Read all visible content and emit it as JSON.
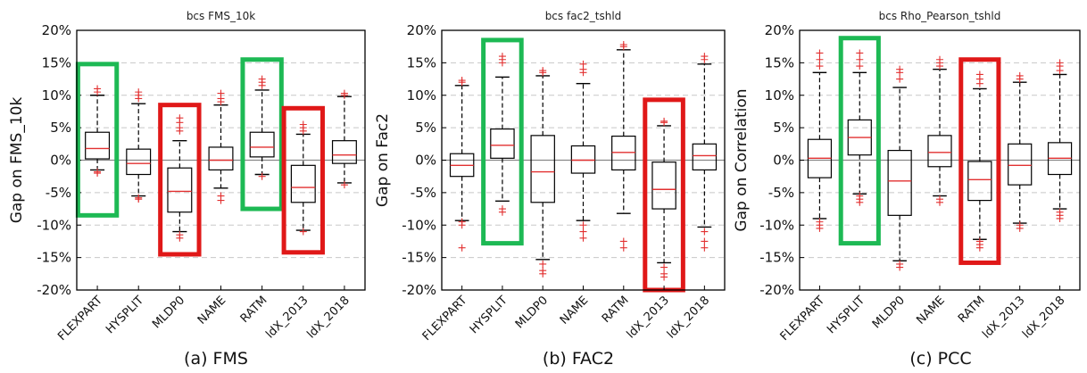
{
  "chart_data": [
    {
      "type": "box",
      "caption": "(a) FMS",
      "title": "bcs FMS_10k",
      "ylabel": "Gap on FMS_10k",
      "ylim": [
        -20,
        20
      ],
      "yticks": [
        "-20%",
        "-15%",
        "-10%",
        "-5%",
        "0%",
        "5%",
        "10%",
        "15%",
        "20%"
      ],
      "categories": [
        "FLEXPART",
        "HYSPLIT",
        "MLDP0",
        "NAME",
        "RATM",
        "ldX_2013",
        "ldX_2018"
      ],
      "boxes": [
        {
          "whislo": -1.5,
          "q1": 0.2,
          "med": 1.8,
          "q3": 4.3,
          "whishi": 10,
          "fliers": [
            -2,
            -1.8,
            10.5,
            11
          ]
        },
        {
          "whislo": -5.5,
          "q1": -2.2,
          "med": -0.5,
          "q3": 1.7,
          "whishi": 8.7,
          "fliers": [
            -6,
            -5.8,
            9.5,
            10,
            10.5
          ]
        },
        {
          "whislo": -11,
          "q1": -8,
          "med": -4.8,
          "q3": -1.2,
          "whishi": 3,
          "fliers": [
            -12,
            -11.5,
            4.5,
            5,
            5.8,
            6.5
          ]
        },
        {
          "whislo": -4.3,
          "q1": -1.5,
          "med": 0,
          "q3": 2,
          "whishi": 8.5,
          "fliers": [
            -5.5,
            -6.2,
            9,
            9.5,
            10.3
          ]
        },
        {
          "whislo": -2.2,
          "q1": 0.5,
          "med": 2,
          "q3": 4.3,
          "whishi": 10.8,
          "fliers": [
            -2.5,
            11.5,
            12,
            12.5
          ]
        },
        {
          "whislo": -10.8,
          "q1": -6.5,
          "med": -4.2,
          "q3": -0.8,
          "whishi": 4,
          "fliers": [
            -11,
            4.5,
            5,
            5.5
          ]
        },
        {
          "whislo": -3.5,
          "q1": -0.5,
          "med": 0.8,
          "q3": 3,
          "whishi": 9.8,
          "fliers": [
            -3.8,
            10,
            10.3
          ]
        }
      ],
      "highlights": [
        {
          "from": 0,
          "to": 0,
          "ymin": -8.5,
          "ymax": 14.8,
          "color": "#1db954"
        },
        {
          "from": 2,
          "to": 2,
          "ymin": -14.5,
          "ymax": 8.5,
          "color": "#e01818"
        },
        {
          "from": 4,
          "to": 4,
          "ymin": -7.5,
          "ymax": 15.5,
          "color": "#1db954"
        },
        {
          "from": 5,
          "to": 5,
          "ymin": -14.2,
          "ymax": 8,
          "color": "#e01818"
        }
      ]
    },
    {
      "type": "box",
      "caption": "(b) FAC2",
      "title": "bcs fac2_tshld",
      "ylabel": "Gap on Fac2",
      "ylim": [
        -20,
        20
      ],
      "yticks": [
        "-20%",
        "-15%",
        "-10%",
        "-5%",
        "0%",
        "5%",
        "10%",
        "15%",
        "20%"
      ],
      "categories": [
        "FLEXPART",
        "HYSPLIT",
        "MLDP0",
        "NAME",
        "RATM",
        "ldX_2013",
        "ldX_2018"
      ],
      "boxes": [
        {
          "whislo": -9.3,
          "q1": -2.5,
          "med": -0.8,
          "q3": 1,
          "whishi": 11.5,
          "fliers": [
            -9.5,
            -10,
            -13.5,
            12,
            12.3
          ]
        },
        {
          "whislo": -6.3,
          "q1": 0.3,
          "med": 2.3,
          "q3": 4.8,
          "whishi": 12.8,
          "fliers": [
            -7.5,
            -8,
            15,
            15.5,
            16
          ]
        },
        {
          "whislo": -15.3,
          "q1": -6.5,
          "med": -1.8,
          "q3": 3.8,
          "whishi": 13,
          "fliers": [
            -16,
            -17,
            -17.5,
            13.5,
            13.8
          ]
        },
        {
          "whislo": -9.3,
          "q1": -2,
          "med": 0,
          "q3": 2.2,
          "whishi": 11.8,
          "fliers": [
            -10,
            -11,
            -12,
            13.5,
            14,
            14.8
          ]
        },
        {
          "whislo": -8.2,
          "q1": -1.5,
          "med": 1.2,
          "q3": 3.7,
          "whishi": 17,
          "fliers": [
            -12.5,
            -13.5,
            17.5,
            17.8
          ]
        },
        {
          "whislo": -15.8,
          "q1": -7.5,
          "med": -4.5,
          "q3": -0.3,
          "whishi": 5.3,
          "fliers": [
            -16.5,
            -17.5,
            -18,
            5.8,
            6
          ]
        },
        {
          "whislo": -10.3,
          "q1": -1.5,
          "med": 0.7,
          "q3": 2.5,
          "whishi": 14.8,
          "fliers": [
            -11,
            -12.5,
            -13.5,
            15.5,
            16
          ]
        }
      ],
      "highlights": [
        {
          "from": 1,
          "to": 1,
          "ymin": -12.8,
          "ymax": 18.5,
          "color": "#1db954"
        },
        {
          "from": 5,
          "to": 5,
          "ymin": -20,
          "ymax": 9.3,
          "color": "#e01818"
        }
      ]
    },
    {
      "type": "box",
      "caption": "(c) PCC",
      "title": "bcs Rho_Pearson_tshld",
      "ylabel": "Gap on Correlation",
      "ylim": [
        -20,
        20
      ],
      "yticks": [
        "-20%",
        "-15%",
        "-10%",
        "-5%",
        "0%",
        "5%",
        "10%",
        "15%",
        "20%"
      ],
      "categories": [
        "FLEXPART",
        "HYSPLIT",
        "MLDP0",
        "NAME",
        "RATM",
        "ldX_2013",
        "ldX_2018"
      ],
      "boxes": [
        {
          "whislo": -9,
          "q1": -2.7,
          "med": 0.3,
          "q3": 3.2,
          "whishi": 13.5,
          "fliers": [
            -9.5,
            -10,
            -10.5,
            14.5,
            15.5,
            16.5
          ]
        },
        {
          "whislo": -5.2,
          "q1": 0.8,
          "med": 3.5,
          "q3": 6.2,
          "whishi": 13.5,
          "fliers": [
            -5.5,
            -6,
            -6.5,
            14.5,
            15.5,
            16.5
          ]
        },
        {
          "whislo": -15.5,
          "q1": -8.5,
          "med": -3.2,
          "q3": 1.5,
          "whishi": 11.2,
          "fliers": [
            -16,
            -16.5,
            12.5,
            13.5,
            14
          ]
        },
        {
          "whislo": -5.5,
          "q1": -1,
          "med": 1.2,
          "q3": 3.8,
          "whishi": 14,
          "fliers": [
            -6,
            -6.5,
            14.5,
            15,
            15.5
          ]
        },
        {
          "whislo": -12.2,
          "q1": -6.2,
          "med": -3,
          "q3": -0.2,
          "whishi": 11,
          "fliers": [
            -12.5,
            -13,
            -13.5,
            11.8,
            12.5,
            13.2
          ]
        },
        {
          "whislo": -9.7,
          "q1": -3.8,
          "med": -0.8,
          "q3": 2.5,
          "whishi": 12,
          "fliers": [
            -10,
            -10.5,
            12.5,
            13
          ]
        },
        {
          "whislo": -7.5,
          "q1": -2.2,
          "med": 0.3,
          "q3": 2.7,
          "whishi": 13.2,
          "fliers": [
            -8,
            -8.5,
            -9,
            13.8,
            14.5,
            15
          ]
        }
      ],
      "highlights": [
        {
          "from": 1,
          "to": 1,
          "ymin": -12.8,
          "ymax": 18.8,
          "color": "#1db954"
        },
        {
          "from": 4,
          "to": 4,
          "ymin": -15.8,
          "ymax": 15.5,
          "color": "#e01818"
        }
      ]
    }
  ]
}
